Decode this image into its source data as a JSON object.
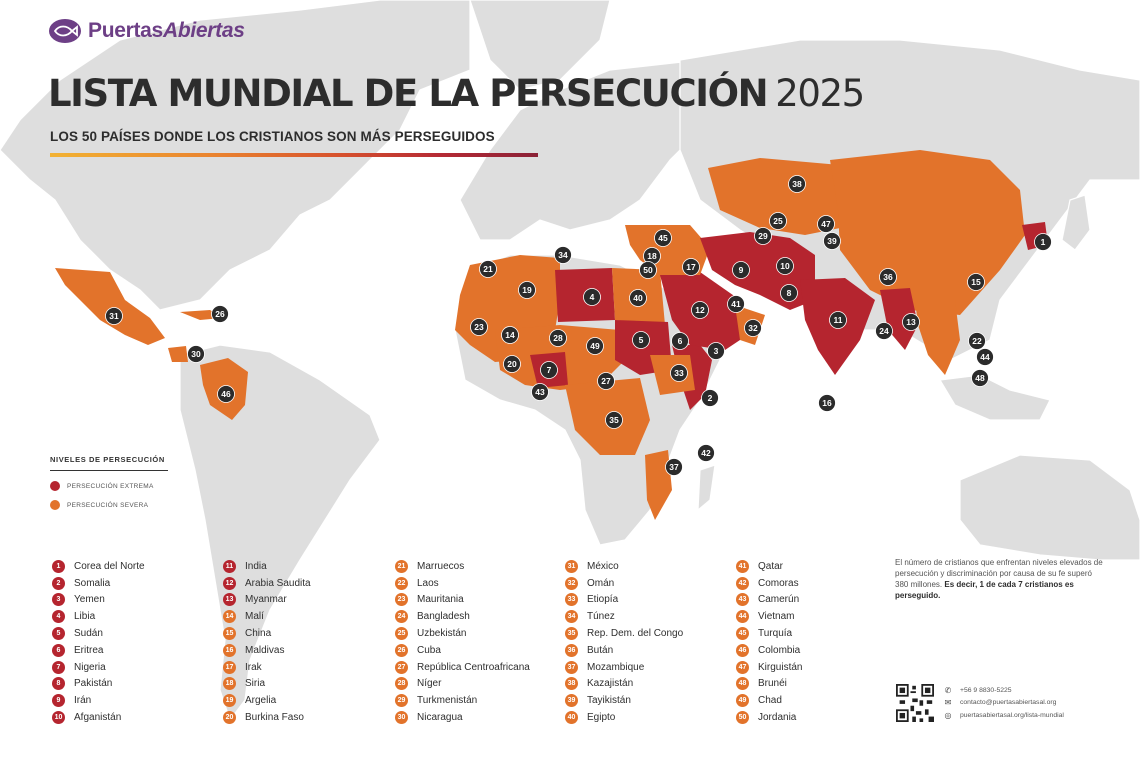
{
  "brand": {
    "name_a": "Puertas",
    "name_b": "Abiertas"
  },
  "header": {
    "title": "LISTA MUNDIAL DE LA PERSECUCIÓN",
    "year": "2025",
    "subtitle": "LOS 50 PAÍSES DONDE LOS CRISTIANOS SON MÁS PERSEGUIDOS"
  },
  "colors": {
    "extreme": "#b5252f",
    "severe": "#e2732b",
    "marker": "#2b2b2b",
    "land": "#dedede",
    "brand": "#6d3f86"
  },
  "legend": {
    "title": "NIVELES DE PERSECUCIÓN",
    "items": [
      {
        "label": "PERSECUCIÓN EXTREMA",
        "level": "extreme"
      },
      {
        "label": "PERSECUCIÓN SEVERA",
        "level": "severe"
      }
    ]
  },
  "countries": [
    {
      "rank": "1",
      "name": "Corea del Norte",
      "level": "extreme"
    },
    {
      "rank": "2",
      "name": "Somalia",
      "level": "extreme"
    },
    {
      "rank": "3",
      "name": "Yemen",
      "level": "extreme"
    },
    {
      "rank": "4",
      "name": "Libia",
      "level": "extreme"
    },
    {
      "rank": "5",
      "name": "Sudán",
      "level": "extreme"
    },
    {
      "rank": "6",
      "name": "Eritrea",
      "level": "extreme"
    },
    {
      "rank": "7",
      "name": "Nigeria",
      "level": "extreme"
    },
    {
      "rank": "8",
      "name": "Pakistán",
      "level": "extreme"
    },
    {
      "rank": "9",
      "name": "Irán",
      "level": "extreme"
    },
    {
      "rank": "10",
      "name": "Afganistán",
      "level": "extreme"
    },
    {
      "rank": "11",
      "name": "India",
      "level": "extreme"
    },
    {
      "rank": "12",
      "name": "Arabia Saudita",
      "level": "extreme"
    },
    {
      "rank": "13",
      "name": "Myanmar",
      "level": "extreme"
    },
    {
      "rank": "14",
      "name": "Malí",
      "level": "severe"
    },
    {
      "rank": "15",
      "name": "China",
      "level": "severe"
    },
    {
      "rank": "16",
      "name": "Maldivas",
      "level": "severe"
    },
    {
      "rank": "17",
      "name": "Irak",
      "level": "severe"
    },
    {
      "rank": "18",
      "name": "Siria",
      "level": "severe"
    },
    {
      "rank": "19",
      "name": "Argelia",
      "level": "severe"
    },
    {
      "rank": "20",
      "name": "Burkina Faso",
      "level": "severe"
    },
    {
      "rank": "21",
      "name": "Marruecos",
      "level": "severe"
    },
    {
      "rank": "22",
      "name": "Laos",
      "level": "severe"
    },
    {
      "rank": "23",
      "name": "Mauritania",
      "level": "severe"
    },
    {
      "rank": "24",
      "name": "Bangladesh",
      "level": "severe"
    },
    {
      "rank": "25",
      "name": "Uzbekistán",
      "level": "severe"
    },
    {
      "rank": "26",
      "name": "Cuba",
      "level": "severe"
    },
    {
      "rank": "27",
      "name": "República Centroafricana",
      "level": "severe"
    },
    {
      "rank": "28",
      "name": "Níger",
      "level": "severe"
    },
    {
      "rank": "29",
      "name": "Turkmenistán",
      "level": "severe"
    },
    {
      "rank": "30",
      "name": "Nicaragua",
      "level": "severe"
    },
    {
      "rank": "31",
      "name": "México",
      "level": "severe"
    },
    {
      "rank": "32",
      "name": "Omán",
      "level": "severe"
    },
    {
      "rank": "33",
      "name": "Etiopía",
      "level": "severe"
    },
    {
      "rank": "34",
      "name": "Túnez",
      "level": "severe"
    },
    {
      "rank": "35",
      "name": "Rep. Dem. del Congo",
      "level": "severe"
    },
    {
      "rank": "36",
      "name": "Bután",
      "level": "severe"
    },
    {
      "rank": "37",
      "name": "Mozambique",
      "level": "severe"
    },
    {
      "rank": "38",
      "name": "Kazajistán",
      "level": "severe"
    },
    {
      "rank": "39",
      "name": "Tayikistán",
      "level": "severe"
    },
    {
      "rank": "40",
      "name": "Egipto",
      "level": "severe"
    },
    {
      "rank": "41",
      "name": "Qatar",
      "level": "severe"
    },
    {
      "rank": "42",
      "name": "Comoras",
      "level": "severe"
    },
    {
      "rank": "43",
      "name": "Camerún",
      "level": "severe"
    },
    {
      "rank": "44",
      "name": "Vietnam",
      "level": "severe"
    },
    {
      "rank": "45",
      "name": "Turquía",
      "level": "severe"
    },
    {
      "rank": "46",
      "name": "Colombia",
      "level": "severe"
    },
    {
      "rank": "47",
      "name": "Kirguistán",
      "level": "severe"
    },
    {
      "rank": "48",
      "name": "Brunéi",
      "level": "severe"
    },
    {
      "rank": "49",
      "name": "Chad",
      "level": "severe"
    },
    {
      "rank": "50",
      "name": "Jordania",
      "level": "severe"
    }
  ],
  "note": {
    "text": "El número de cristianos que enfrentan niveles elevados de persecución y discriminación por causa de su fe superó 380 millones.",
    "bold": "Es decir, 1 de cada 7 cristianos es perseguido."
  },
  "contact": [
    {
      "icon": "whatsapp-icon",
      "text": "+56 9 8830-5225"
    },
    {
      "icon": "mail-icon",
      "text": "contacto@puertasabiertasal.org"
    },
    {
      "icon": "globe-icon",
      "text": "puertasabiertasal.org/lista-mundial"
    }
  ]
}
